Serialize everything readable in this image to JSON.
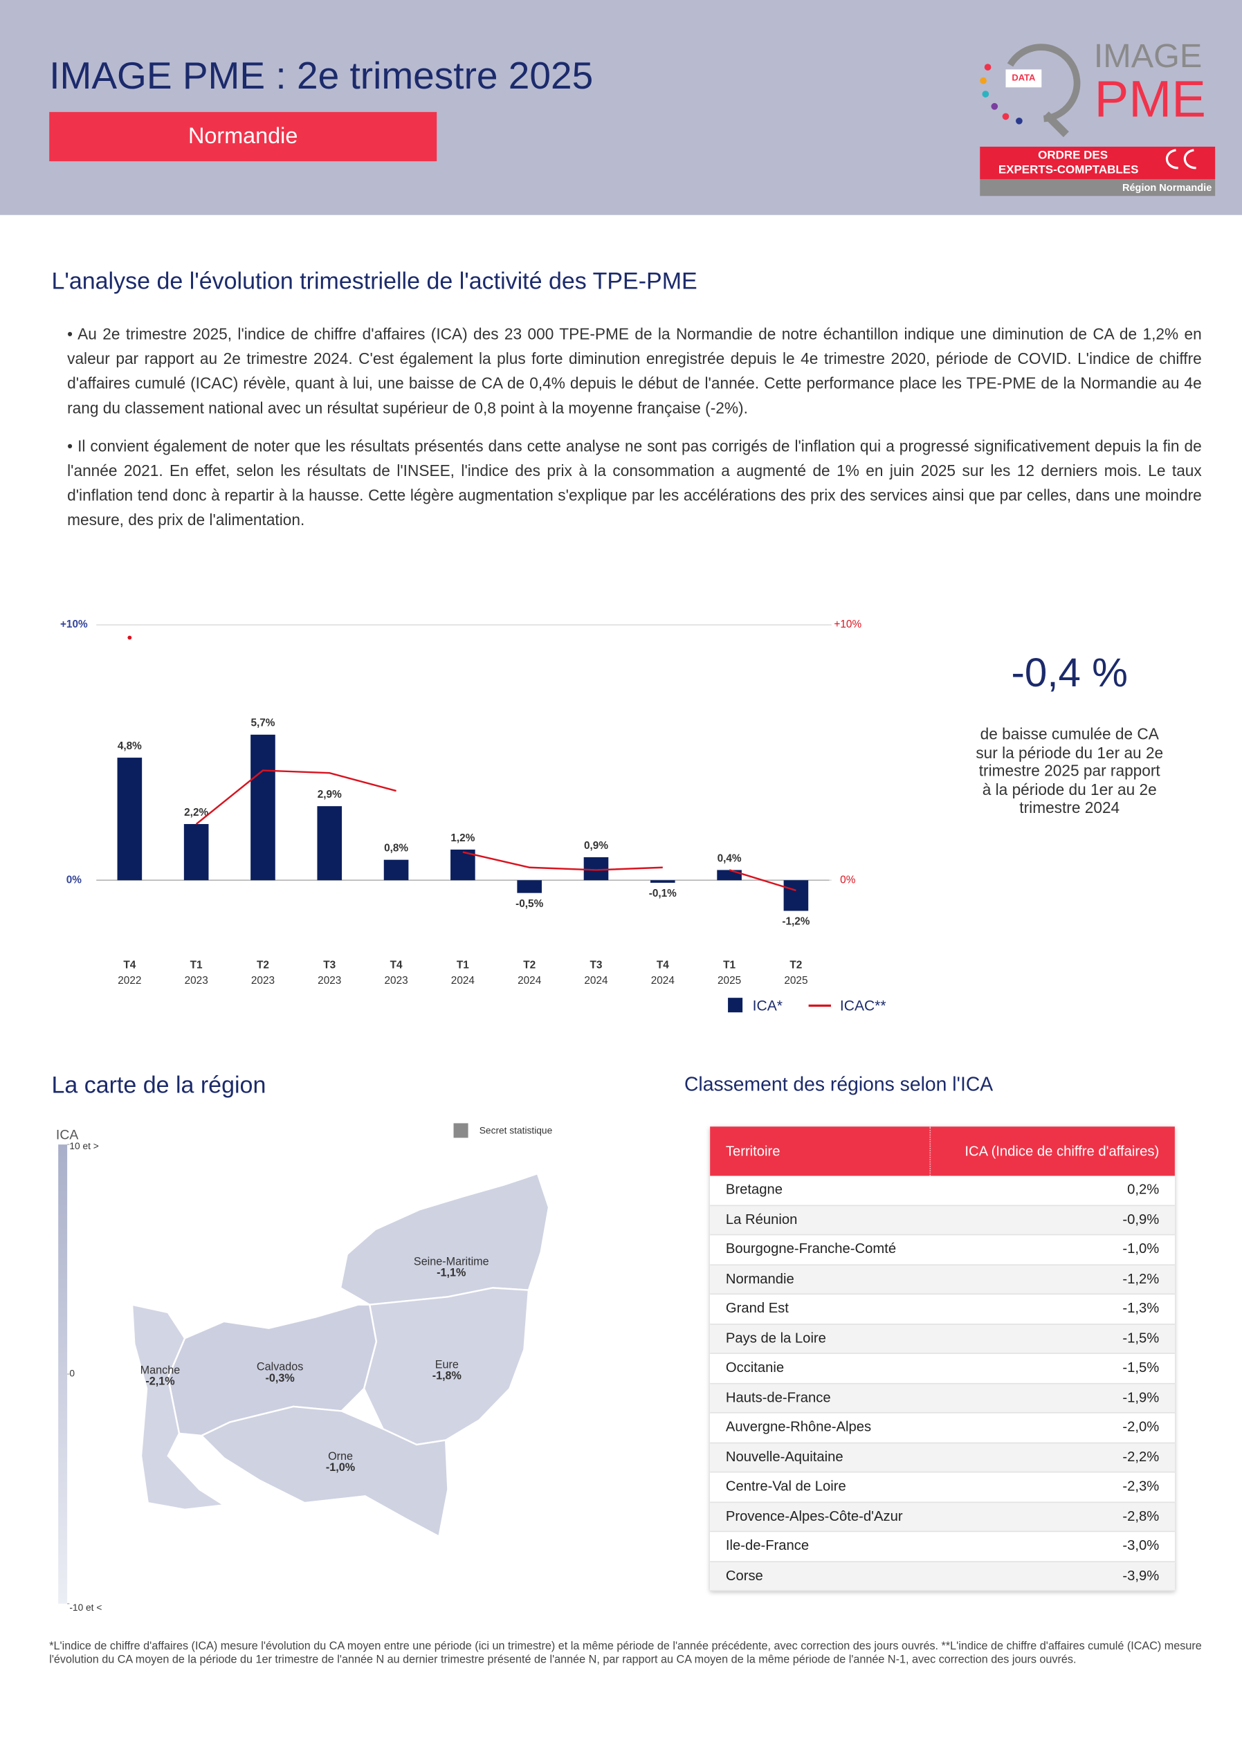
{
  "header": {
    "title": "IMAGE PME : 2e trimestre 2025",
    "region": "Normandie",
    "logo": {
      "badge": "DATA",
      "line1": "IMAGE",
      "line2": "PME",
      "order1": "ORDRE DES",
      "order2": "EXPERTS-COMPTABLES",
      "order3": "Région Normandie"
    }
  },
  "analysis": {
    "title": "L'analyse de l'évolution trimestrielle de l'activité des TPE-PME",
    "paragraphs": [
      "• Au 2e trimestre 2025, l'indice de chiffre d'affaires (ICA) des 23 000 TPE-PME de la Normandie de notre échantillon indique une diminution de CA de 1,2% en valeur par rapport au 2e trimestre 2024. C'est également la plus forte diminution enregistrée depuis le 4e trimestre 2020, période de COVID. L'indice de chiffre d'affaires cumulé (ICAC) révèle, quant à lui, une baisse de CA de 0,4% depuis le début de l'année. Cette performance place les TPE-PME de la Normandie au 4e rang du classement national avec un résultat supérieur de 0,8 point à la moyenne française (-2%).",
      "• Il convient également de noter que les résultats présentés dans cette analyse ne sont pas corrigés de l'inflation qui a progressé significativement depuis la fin de l'année 2021. En effet, selon les résultats de l'INSEE, l'indice des prix à la consommation a augmenté de 1% en juin 2025 sur les 12 derniers mois. Le taux d'inflation tend donc à repartir à la hausse. Cette légère augmentation s'explique par les accélérations des prix des services ainsi que par celles, dans une moindre mesure, des prix de l'alimentation."
    ]
  },
  "chart_data": {
    "type": "bar",
    "categories": [
      [
        "T4",
        "2022"
      ],
      [
        "T1",
        "2023"
      ],
      [
        "T2",
        "2023"
      ],
      [
        "T3",
        "2023"
      ],
      [
        "T4",
        "2023"
      ],
      [
        "T1",
        "2024"
      ],
      [
        "T2",
        "2024"
      ],
      [
        "T3",
        "2024"
      ],
      [
        "T4",
        "2024"
      ],
      [
        "T1",
        "2025"
      ],
      [
        "T2",
        "2025"
      ]
    ],
    "series": [
      {
        "name": "ICA*",
        "type": "bar",
        "color": "#0b1f5e",
        "values": [
          4.8,
          2.2,
          5.7,
          2.9,
          0.8,
          1.2,
          -0.5,
          0.9,
          -0.1,
          0.4,
          -1.2
        ],
        "value_labels": [
          "4,8%",
          "2,2%",
          "5,7%",
          "2,9%",
          "0,8%",
          "1,2%",
          "-0,5%",
          "0,9%",
          "-0,1%",
          "0,4%",
          "-1,2%"
        ]
      },
      {
        "name": "ICAC**",
        "type": "line",
        "axis": "y2",
        "color": "#d8131f",
        "values": [
          9.5,
          2.2,
          4.3,
          4.2,
          3.5,
          1.1,
          0.5,
          0.4,
          0.5,
          0.4,
          -0.4
        ]
      }
    ],
    "ylim": [
      -3,
      10
    ],
    "yticks": [
      {
        "value": 10,
        "label": "+10%"
      },
      {
        "value": 0,
        "label": "0%"
      }
    ],
    "y2lim": [
      -3,
      10
    ],
    "y2ticks": [
      {
        "value": 10,
        "label": "+10%"
      },
      {
        "value": 0,
        "label": "0%"
      }
    ],
    "grid": true
  },
  "highlight": {
    "value": "-0,4 %",
    "description": [
      "de baisse cumulée de CA",
      "sur la période du 1er au 2e",
      "trimestre 2025 par rapport",
      "à la période du 1er au 2e",
      "trimestre 2024"
    ]
  },
  "map": {
    "title": "La carte de la région",
    "legend_title": "ICA",
    "secret_label": "Secret statistique",
    "scale_ticks": [
      {
        "value": 10,
        "label": "10 et >"
      },
      {
        "value": 0,
        "label": "0"
      },
      {
        "value": -10,
        "label": "-10 et <"
      }
    ],
    "color_scale": [
      "#eceef5",
      "#a9afc9"
    ],
    "regions": [
      {
        "name": "Seine-Maritime",
        "value": -1.1,
        "value_label": "-1,1%"
      },
      {
        "name": "Eure",
        "value": -1.8,
        "value_label": "-1,8%"
      },
      {
        "name": "Calvados",
        "value": -0.3,
        "value_label": "-0,3%"
      },
      {
        "name": "Manche",
        "value": -2.1,
        "value_label": "-2,1%"
      },
      {
        "name": "Orne",
        "value": -1.0,
        "value_label": "-1,0%"
      }
    ]
  },
  "table": {
    "title": "Classement des régions selon l'ICA",
    "header": [
      "Territoire",
      "ICA (Indice de chiffre d'affaires)"
    ],
    "rows": [
      [
        "Bretagne",
        "0,2%"
      ],
      [
        "La Réunion",
        "-0,9%"
      ],
      [
        "Bourgogne-Franche-Comté",
        "-1,0%"
      ],
      [
        "Normandie",
        "-1,2%"
      ],
      [
        "Grand Est",
        "-1,3%"
      ],
      [
        "Pays de la Loire",
        "-1,5%"
      ],
      [
        "Occitanie",
        "-1,5%"
      ],
      [
        "Hauts-de-France",
        "-1,9%"
      ],
      [
        "Auvergne-Rhône-Alpes",
        "-2,0%"
      ],
      [
        "Nouvelle-Aquitaine",
        "-2,2%"
      ],
      [
        "Centre-Val de Loire",
        "-2,3%"
      ],
      [
        "Provence-Alpes-Côte-d'Azur",
        "-2,8%"
      ],
      [
        "Ile-de-France",
        "-3,0%"
      ],
      [
        "Corse",
        "-3,9%"
      ]
    ]
  },
  "footnote": "*L'indice de chiffre d'affaires (ICA) mesure l'évolution du CA moyen entre une période (ici un trimestre) et la même période de l'année précédente, avec correction des jours ouvrés. **L'indice de chiffre d'affaires cumulé (ICAC) mesure l'évolution du CA moyen de la période du 1er trimestre de l'année N au dernier trimestre présenté de l'année N, par rapport au CA moyen de la même période de l'année N-1, avec correction des jours ouvrés."
}
